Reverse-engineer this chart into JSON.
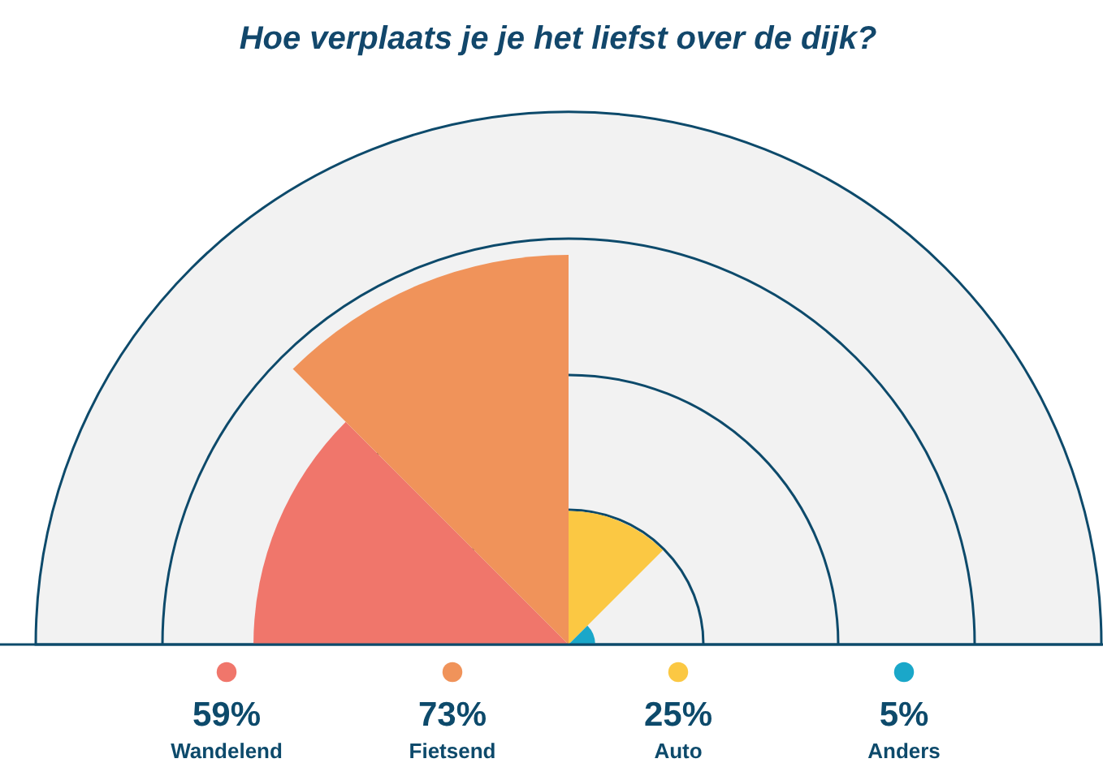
{
  "chart_data": {
    "type": "other",
    "title": "Hoe verplaats je je het liefst over de dijk?",
    "categories": [
      "Wandelend",
      "Fietsend",
      "Auto",
      "Anders"
    ],
    "values": [
      59,
      73,
      25,
      5
    ],
    "value_labels": [
      "59%",
      "73%",
      "25%",
      "5%"
    ],
    "colors": [
      "#f0766b",
      "#f0935a",
      "#fbc843",
      "#1aa7c9"
    ]
  }
}
